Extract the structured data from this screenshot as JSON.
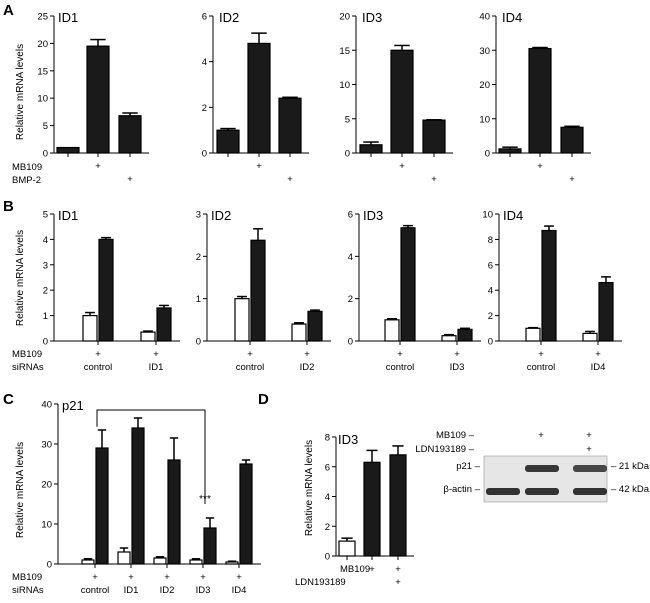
{
  "panels": {
    "A": "A",
    "B": "B",
    "C": "C",
    "D": "D"
  },
  "shared": {
    "ylabel": "Relative mRNA levels",
    "plus": "+"
  },
  "chart_data": [
    {
      "id": "A-ID1",
      "panel": "A",
      "type": "bar",
      "title": "ID1",
      "ylabel": "Relative mRNA levels",
      "ylim": [
        0,
        25
      ],
      "yticks": [
        0,
        5,
        10,
        15,
        20,
        25
      ],
      "conditions": {
        "MB109": [
          "",
          "+",
          ""
        ],
        "BMP-2": [
          "",
          "",
          "+"
        ]
      },
      "series": [
        {
          "values": [
            1,
            19.5,
            6.8
          ],
          "errors": [
            0,
            1.2,
            0.5
          ],
          "fill": "#1a1a1a"
        }
      ]
    },
    {
      "id": "A-ID2",
      "panel": "A",
      "type": "bar",
      "title": "ID2",
      "ylim": [
        0,
        6
      ],
      "yticks": [
        0,
        2,
        4,
        6
      ],
      "series": [
        {
          "values": [
            1.0,
            4.8,
            2.4
          ],
          "errors": [
            0.07,
            0.45,
            0.04
          ],
          "fill": "#1a1a1a"
        }
      ]
    },
    {
      "id": "A-ID3",
      "panel": "A",
      "type": "bar",
      "title": "ID3",
      "ylim": [
        0,
        20
      ],
      "yticks": [
        0,
        5,
        10,
        15,
        20
      ],
      "series": [
        {
          "values": [
            1.2,
            15.0,
            4.8
          ],
          "errors": [
            0.4,
            0.7,
            0.05
          ],
          "fill": "#1a1a1a"
        }
      ]
    },
    {
      "id": "A-ID4",
      "panel": "A",
      "type": "bar",
      "title": "ID4",
      "ylim": [
        0,
        40
      ],
      "yticks": [
        0,
        10,
        20,
        30,
        40
      ],
      "series": [
        {
          "values": [
            1.2,
            30.5,
            7.5
          ],
          "errors": [
            0.5,
            0.3,
            0.3
          ],
          "fill": "#1a1a1a"
        }
      ]
    },
    {
      "id": "B-ID1",
      "panel": "B",
      "type": "bar",
      "title": "ID1",
      "ylabel": "Relative mRNA levels",
      "ylim": [
        0,
        5
      ],
      "yticks": [
        0,
        1,
        2,
        3,
        4,
        5
      ],
      "conditions": {
        "MB109": [
          "+",
          "+"
        ],
        "siRNAs": [
          "control",
          "ID1"
        ]
      },
      "series": [
        {
          "values": [
            1.0,
            0.35
          ],
          "errors": [
            0.12,
            0.04
          ],
          "fill": "#ffffff"
        },
        {
          "values": [
            4.0,
            1.3
          ],
          "errors": [
            0.07,
            0.1
          ],
          "fill": "#1a1a1a"
        }
      ]
    },
    {
      "id": "B-ID2",
      "panel": "B",
      "type": "bar",
      "title": "ID2",
      "ylim": [
        0,
        3
      ],
      "yticks": [
        0,
        1,
        2,
        3
      ],
      "conditions": {
        "siRNAs": [
          "control",
          "ID2"
        ]
      },
      "series": [
        {
          "values": [
            1.0,
            0.4
          ],
          "errors": [
            0.05,
            0.03
          ],
          "fill": "#ffffff"
        },
        {
          "values": [
            2.38,
            0.7
          ],
          "errors": [
            0.27,
            0.03
          ],
          "fill": "#1a1a1a"
        }
      ]
    },
    {
      "id": "B-ID3",
      "panel": "B",
      "type": "bar",
      "title": "ID3",
      "ylim": [
        0,
        6
      ],
      "yticks": [
        0,
        2,
        4,
        6
      ],
      "conditions": {
        "siRNAs": [
          "control",
          "ID3"
        ]
      },
      "series": [
        {
          "values": [
            1.0,
            0.25
          ],
          "errors": [
            0.05,
            0.05
          ],
          "fill": "#ffffff"
        },
        {
          "values": [
            5.35,
            0.55
          ],
          "errors": [
            0.1,
            0.05
          ],
          "fill": "#1a1a1a"
        }
      ]
    },
    {
      "id": "B-ID4",
      "panel": "B",
      "type": "bar",
      "title": "ID4",
      "ylim": [
        0,
        10
      ],
      "yticks": [
        0,
        2,
        4,
        6,
        8,
        10
      ],
      "conditions": {
        "siRNAs": [
          "control",
          "ID4"
        ]
      },
      "series": [
        {
          "values": [
            1.0,
            0.6
          ],
          "errors": [
            0.05,
            0.15
          ],
          "fill": "#ffffff"
        },
        {
          "values": [
            8.7,
            4.6
          ],
          "errors": [
            0.35,
            0.45
          ],
          "fill": "#1a1a1a"
        }
      ]
    },
    {
      "id": "C-p21",
      "panel": "C",
      "type": "bar",
      "title": "p21",
      "ylabel": "Relative mRNA levels",
      "ylim": [
        0,
        40
      ],
      "yticks": [
        0,
        10,
        20,
        30,
        40
      ],
      "conditions": {
        "MB109": [
          "+",
          "+",
          "+",
          "+",
          "+"
        ],
        "siRNAs": [
          "control",
          "ID1",
          "ID2",
          "ID3",
          "ID4"
        ]
      },
      "series": [
        {
          "values": [
            1.0,
            3.0,
            1.5,
            1.0,
            0.5
          ],
          "errors": [
            0.3,
            1.0,
            0.3,
            0.3,
            0.2
          ],
          "fill": "#ffffff"
        },
        {
          "values": [
            29.0,
            34.0,
            26.0,
            9.0,
            25.0
          ],
          "errors": [
            4.5,
            2.5,
            5.5,
            2.5,
            1.0
          ],
          "fill": "#1a1a1a"
        }
      ],
      "annotation": {
        "text": "***",
        "bracket_from": "control",
        "bracket_to": "ID3"
      }
    },
    {
      "id": "D-ID3",
      "panel": "D",
      "type": "bar",
      "title": "ID3",
      "ylabel": "Relative mRNA levels",
      "ylim": [
        0,
        8
      ],
      "yticks": [
        0,
        2,
        4,
        6,
        8
      ],
      "conditions": {
        "MB109": [
          "",
          "+",
          "+"
        ],
        "LDN193189": [
          "",
          "",
          "+"
        ]
      },
      "series": [
        {
          "values": [
            1.0,
            6.3,
            6.8
          ],
          "errors": [
            0.2,
            0.8,
            0.6
          ],
          "fills": [
            "#ffffff",
            "#1a1a1a",
            "#1a1a1a"
          ]
        }
      ]
    }
  ],
  "western_blot": {
    "row_labels": [
      "MB109 –",
      "LDN193189 –"
    ],
    "plus_marks": [
      [
        "",
        "+",
        "+"
      ],
      [
        "",
        "",
        "+"
      ]
    ],
    "bands": [
      {
        "label": "p21 –",
        "size": "– 21 kDa",
        "intensity": [
          0,
          0.95,
          0.75
        ]
      },
      {
        "label": "β-actin –",
        "size": "– 42 kDa",
        "intensity": [
          1,
          1,
          1
        ]
      }
    ]
  }
}
